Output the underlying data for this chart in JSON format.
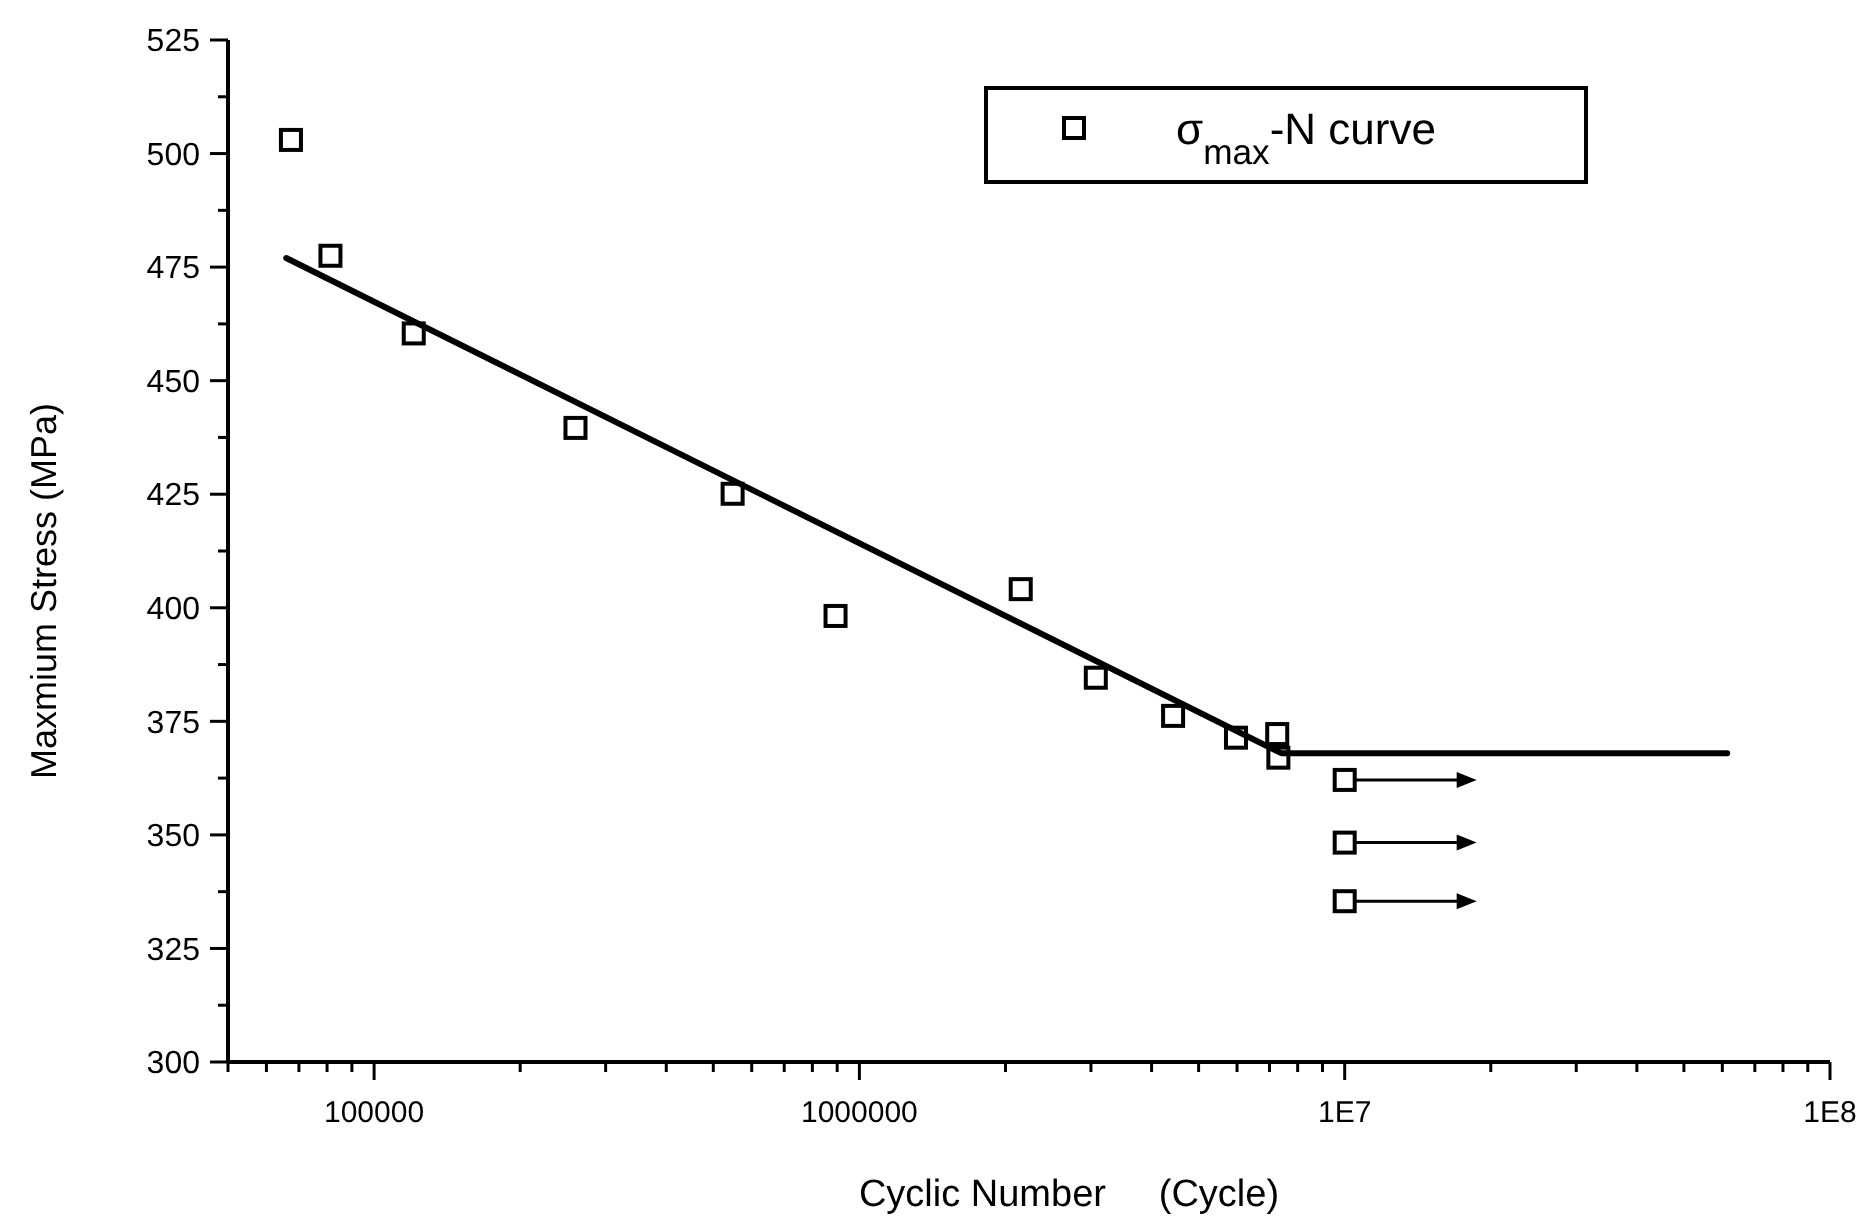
{
  "chart_data": {
    "type": "scatter",
    "xlabel": "Cyclic Number     (Cycle)",
    "ylabel": "Maxmium Stress (MPa)",
    "log": "x",
    "xlim": [
      50000,
      100000000
    ],
    "xticks": [
      100000,
      1000000,
      {
        "value": 10000000,
        "label": "1E7"
      },
      {
        "value": 100000000,
        "label": "1E8"
      }
    ],
    "ylim": [
      300,
      525
    ],
    "yticks": [
      300,
      325,
      350,
      375,
      400,
      425,
      450,
      475,
      500,
      525
    ],
    "grid": false,
    "legend": "top right",
    "marker": "square",
    "series": [
      {
        "name": "σ$_{max}$-N curve",
        "color": "#000000",
        "x": [
          67400,
          81300,
          120700,
          260000,
          548000,
          893000,
          2150000,
          3070000,
          4430000,
          5970000,
          7260000,
          7300000
        ],
        "values": [
          503,
          477.5,
          460.4,
          439.6,
          425.1,
          398.2,
          404.1,
          384.6,
          376.2,
          371.4,
          372.2,
          367
        ]
      },
      {
        "type": "line",
        "color": "#000000",
        "line_style": "solid",
        "marker": "none",
        "x": [
          65900,
          7400000,
          61400000
        ],
        "values": [
          477,
          368,
          368
        ]
      },
      {
        "color": "#000000",
        "x": [
          10000000,
          10000000,
          10000000
        ],
        "values": [
          362.1,
          348.3,
          335.4
        ]
      }
    ]
  }
}
